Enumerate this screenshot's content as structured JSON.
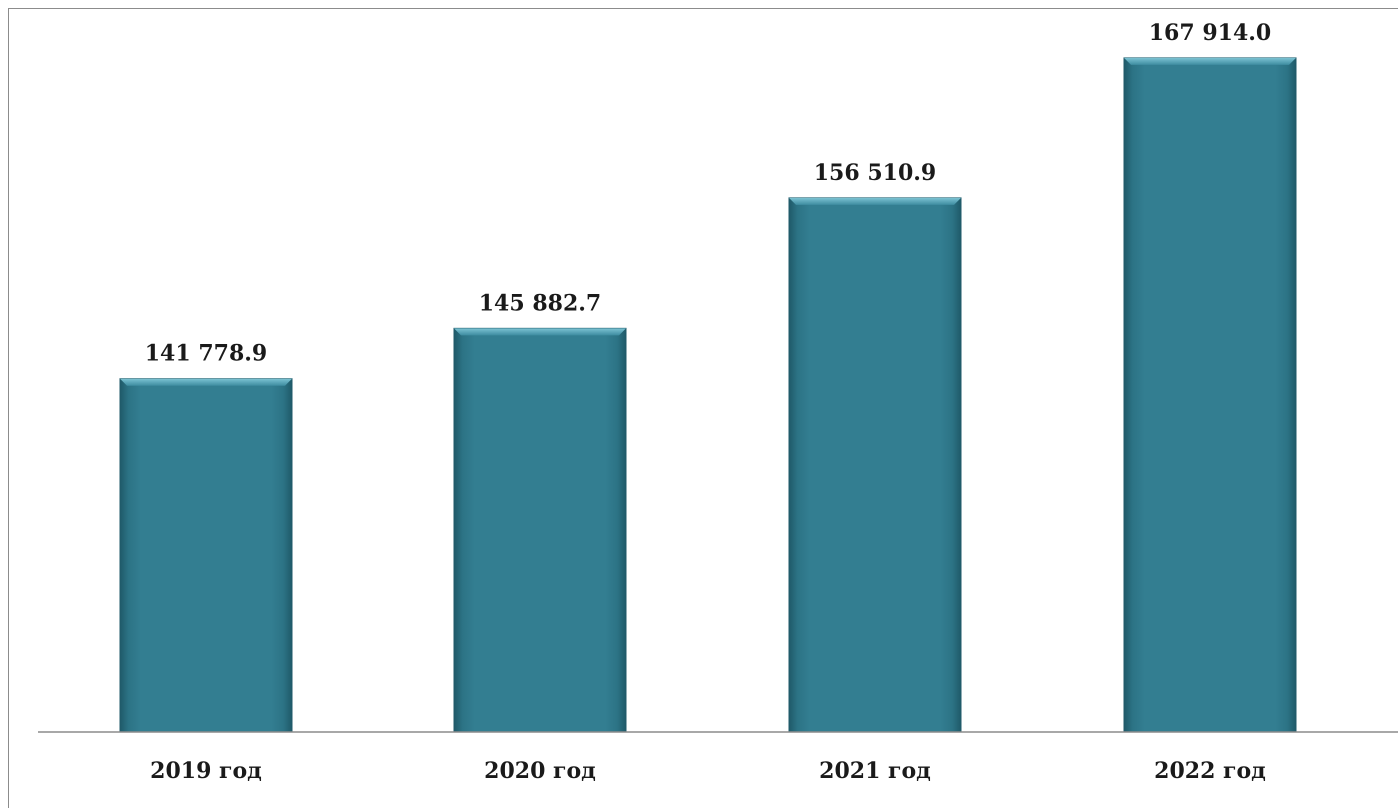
{
  "chart_data": {
    "type": "bar",
    "categories": [
      "2019 год",
      "2020 год",
      "2021 год",
      "2022 год"
    ],
    "values": [
      141778.9,
      145882.7,
      156510.9,
      167914.0
    ],
    "value_labels": [
      "141 778.9",
      "145 882.7",
      "156 510.9",
      "167 914.0"
    ],
    "ylim": [
      113000,
      171000
    ],
    "grid": false,
    "legend": "none",
    "colors": {
      "bar_fill": "#337e91",
      "bar_edge_light": "#5cb0c4",
      "bar_edge_dark": "#1f5a69",
      "axis": "#8c8c8c"
    }
  }
}
